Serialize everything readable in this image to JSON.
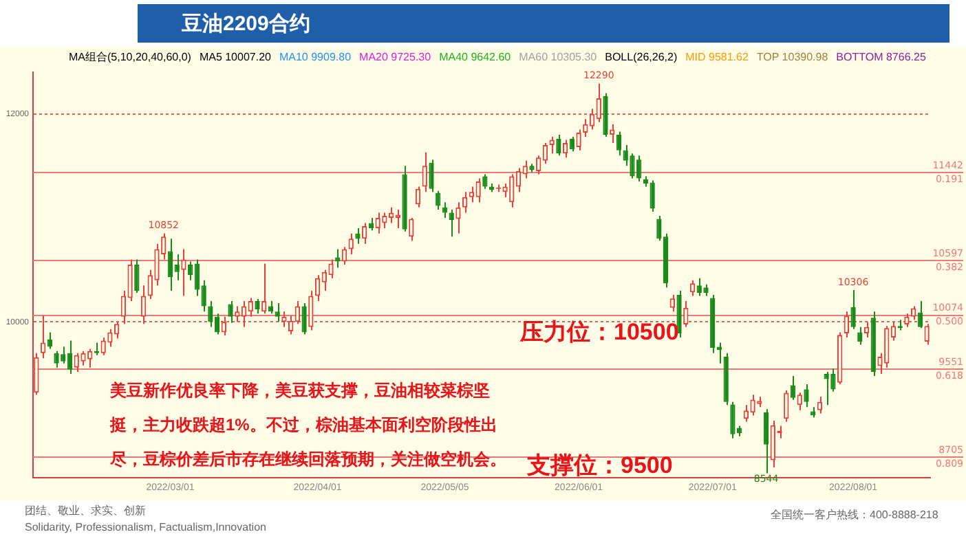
{
  "chart_data": {
    "type": "candlestick",
    "title": "豆油2209合约",
    "categories": [
      null,
      null,
      null,
      null,
      null,
      null,
      null,
      null,
      null,
      null,
      null,
      null,
      null,
      null,
      null,
      null,
      null,
      null,
      null,
      null,
      "2022/03/01",
      null,
      null,
      null,
      null,
      null,
      null,
      null,
      null,
      null,
      null,
      null,
      null,
      null,
      null,
      null,
      null,
      null,
      null,
      null,
      null,
      null,
      "2022/04/01",
      null,
      null,
      null,
      null,
      null,
      null,
      null,
      null,
      null,
      null,
      null,
      null,
      null,
      null,
      null,
      null,
      null,
      null,
      "2022/05/05",
      null,
      null,
      null,
      null,
      null,
      null,
      null,
      null,
      null,
      null,
      null,
      null,
      null,
      null,
      null,
      null,
      null,
      null,
      null,
      "2022/06/01",
      null,
      null,
      null,
      null,
      null,
      null,
      null,
      null,
      null,
      null,
      null,
      null,
      null,
      null,
      null,
      null,
      null,
      null,
      null,
      "2022/07/01",
      null,
      null,
      null,
      null,
      null,
      null,
      null,
      null,
      null,
      null,
      null,
      null,
      null,
      null,
      null,
      null,
      null,
      null,
      null,
      null,
      "2022/08/01",
      null,
      null,
      null,
      null,
      null,
      null,
      null,
      null,
      null,
      null,
      null
    ],
    "ohlc": [
      [
        9320,
        9700,
        9300,
        9660
      ],
      [
        9700,
        10060,
        9650,
        9800
      ],
      [
        9830,
        9900,
        9740,
        9760
      ],
      [
        9700,
        9720,
        9560,
        9600
      ],
      [
        9690,
        9760,
        9600,
        9620
      ],
      [
        9700,
        9820,
        9500,
        9540
      ],
      [
        9560,
        9700,
        9520,
        9680
      ],
      [
        9620,
        9720,
        9580,
        9700
      ],
      [
        9640,
        9740,
        9560,
        9720
      ],
      [
        9720,
        9800,
        9680,
        9700
      ],
      [
        9700,
        9850,
        9680,
        9820
      ],
      [
        9800,
        9930,
        9760,
        9900
      ],
      [
        9880,
        10000,
        9840,
        9980
      ],
      [
        10050,
        10300,
        9980,
        10250
      ],
      [
        10230,
        10600,
        10200,
        10550
      ],
      [
        10550,
        10600,
        10280,
        10300
      ],
      [
        10050,
        10350,
        9980,
        10250
      ],
      [
        10250,
        10500,
        10220,
        10450
      ],
      [
        10400,
        10750,
        10350,
        10700
      ],
      [
        10650,
        10852,
        10600,
        10820
      ],
      [
        10680,
        10800,
        10300,
        10430
      ],
      [
        10550,
        10650,
        10400,
        10480
      ],
      [
        10500,
        10700,
        10250,
        10600
      ],
      [
        10550,
        10580,
        10400,
        10450
      ],
      [
        10560,
        10600,
        10250,
        10310
      ],
      [
        10350,
        10400,
        10100,
        10150
      ],
      [
        10150,
        10200,
        9950,
        10000
      ],
      [
        10050,
        10080,
        9880,
        9900
      ],
      [
        9900,
        10050,
        9870,
        10000
      ],
      [
        10170,
        10200,
        9990,
        10050
      ],
      [
        10050,
        10150,
        10000,
        10100
      ],
      [
        10050,
        10200,
        9950,
        10150
      ],
      [
        10100,
        10230,
        10050,
        10200
      ],
      [
        10200,
        10220,
        10080,
        10120
      ],
      [
        10100,
        10560,
        10080,
        10200
      ],
      [
        10150,
        10200,
        10080,
        10100
      ],
      [
        10100,
        10180,
        10000,
        10050
      ],
      [
        10000,
        10100,
        9950,
        10050
      ],
      [
        9910,
        10060,
        9880,
        10010
      ],
      [
        10000,
        10200,
        9980,
        10150
      ],
      [
        10150,
        10180,
        9880,
        9900
      ],
      [
        9950,
        10300,
        9920,
        10250
      ],
      [
        10250,
        10450,
        10200,
        10420
      ],
      [
        10380,
        10500,
        10300,
        10480
      ],
      [
        10450,
        10600,
        10420,
        10560
      ],
      [
        10620,
        10700,
        10520,
        10580
      ],
      [
        10580,
        10720,
        10550,
        10700
      ],
      [
        10700,
        10850,
        10650,
        10800
      ],
      [
        10850,
        10900,
        10750,
        10800
      ],
      [
        10800,
        10950,
        10750,
        10920
      ],
      [
        10950,
        11000,
        10880,
        10900
      ],
      [
        10900,
        11050,
        10850,
        11000
      ],
      [
        10950,
        11050,
        10900,
        11020
      ],
      [
        11000,
        11100,
        10950,
        11050
      ],
      [
        11000,
        11080,
        10900,
        11030
      ],
      [
        11420,
        11500,
        10870,
        10890
      ],
      [
        10820,
        11000,
        10780,
        10990
      ],
      [
        11130,
        11300,
        11100,
        11280
      ],
      [
        11300,
        11630,
        11250,
        11500
      ],
      [
        11530,
        11560,
        11250,
        11280
      ],
      [
        11240,
        11260,
        11080,
        11115
      ],
      [
        11100,
        11150,
        11000,
        11050
      ],
      [
        11050,
        11080,
        10820,
        10980
      ],
      [
        10990,
        11150,
        10850,
        11100
      ],
      [
        11100,
        11250,
        11050,
        11200
      ],
      [
        11200,
        11300,
        11150,
        11250
      ],
      [
        11200,
        11380,
        11150,
        11350
      ],
      [
        11400,
        11420,
        11280,
        11300
      ],
      [
        11300,
        11330,
        11250,
        11270
      ],
      [
        11280,
        11320,
        11250,
        11290
      ],
      [
        11250,
        11330,
        11200,
        11300
      ],
      [
        11150,
        11420,
        11100,
        11400
      ],
      [
        11300,
        11480,
        11250,
        11450
      ],
      [
        11420,
        11550,
        11380,
        11500
      ],
      [
        11500,
        11520,
        11440,
        11460
      ],
      [
        11450,
        11600,
        11420,
        11580
      ],
      [
        11550,
        11720,
        11520,
        11700
      ],
      [
        11700,
        11780,
        11620,
        11750
      ],
      [
        11760,
        11800,
        11600,
        11620
      ],
      [
        11620,
        11750,
        11580,
        11720
      ],
      [
        11760,
        11780,
        11640,
        11660
      ],
      [
        11680,
        11850,
        11650,
        11820
      ],
      [
        11820,
        11950,
        11780,
        11900
      ],
      [
        11880,
        12050,
        11850,
        12000
      ],
      [
        11950,
        12290,
        11920,
        12150
      ],
      [
        12170,
        12200,
        11780,
        11800
      ],
      [
        11800,
        11900,
        11720,
        11850
      ],
      [
        11800,
        11830,
        11600,
        11650
      ],
      [
        11650,
        11700,
        11500,
        11550
      ],
      [
        11600,
        11620,
        11380,
        11400
      ],
      [
        11560,
        11600,
        11350,
        11380
      ],
      [
        11370,
        11400,
        11300,
        11330
      ],
      [
        11340,
        11360,
        11060,
        11090
      ],
      [
        10990,
        11020,
        10780,
        10800
      ],
      [
        10820,
        10850,
        10330,
        10370
      ],
      [
        10135,
        10260,
        10100,
        10225
      ],
      [
        10260,
        10300,
        9850,
        9890
      ],
      [
        9975,
        10200,
        9950,
        10135
      ],
      [
        10285,
        10400,
        10250,
        10370
      ],
      [
        10350,
        10420,
        10250,
        10280
      ],
      [
        10330,
        10360,
        10250,
        10280
      ],
      [
        10230,
        10260,
        9700,
        9750
      ],
      [
        9760,
        9800,
        9600,
        9730
      ],
      [
        9665,
        9700,
        9200,
        9230
      ],
      [
        9205,
        9230,
        8880,
        8920
      ],
      [
        8980,
        9000,
        8900,
        8930
      ],
      [
        9068,
        9200,
        9040,
        9147
      ],
      [
        9127,
        9300,
        9100,
        9251
      ],
      [
        9210,
        9280,
        9180,
        9240
      ],
      [
        9130,
        9160,
        8544,
        8820
      ],
      [
        8670,
        9050,
        8600,
        9005
      ],
      [
        8930,
        9000,
        8880,
        8950
      ],
      [
        9068,
        9340,
        9040,
        9317
      ],
      [
        9390,
        9480,
        9250,
        9270
      ],
      [
        9200,
        9320,
        9150,
        9300
      ],
      [
        9350,
        9400,
        9180,
        9230
      ],
      [
        9140,
        9180,
        9080,
        9100
      ],
      [
        9150,
        9280,
        9120,
        9230
      ],
      [
        9500,
        9520,
        9200,
        9450
      ],
      [
        9500,
        9550,
        9330,
        9350
      ],
      [
        9415,
        9900,
        9400,
        9875
      ],
      [
        9890,
        10100,
        9850,
        10060
      ],
      [
        10140,
        10306,
        9930,
        9950
      ],
      [
        9900,
        9950,
        9780,
        9810
      ],
      [
        9890,
        10000,
        9850,
        9950
      ],
      [
        10040,
        10100,
        9480,
        9520
      ],
      [
        9575,
        9700,
        9500,
        9665
      ],
      [
        9600,
        9960,
        9560,
        9940
      ],
      [
        9850,
        10000,
        9820,
        9960
      ],
      [
        9960,
        10020,
        9920,
        9940
      ],
      [
        9975,
        10080,
        9950,
        10050
      ],
      [
        10050,
        10150,
        10020,
        10130
      ],
      [
        10090,
        10200,
        9940,
        9950
      ],
      [
        9810,
        9980,
        9780,
        9960
      ]
    ],
    "ylim": [
      8500,
      12400
    ],
    "yticks": [
      10000,
      12000
    ],
    "grid": "y",
    "ref_lines": [
      {
        "axis": "y",
        "value": 11442,
        "label": "11442 0.191",
        "color": "#f07878"
      },
      {
        "axis": "y",
        "value": 10597,
        "label": "10597 0.382",
        "color": "#f07878"
      },
      {
        "axis": "y",
        "value": 10074,
        "label": "10074 0.500",
        "color": "#f07878"
      },
      {
        "axis": "y",
        "value": 9551,
        "label": "9551 0.618",
        "color": "#f07878"
      },
      {
        "axis": "y",
        "value": 8705,
        "label": "8705 0.809",
        "color": "#f07878"
      }
    ],
    "annotations": [
      "MA组合(5,10,20,40,60,0)",
      "MA5 10007.20",
      "MA10 9909.80",
      "MA20 9725.30",
      "MA40 9642.60",
      "MA60 10305.30",
      "BOLL(26,26,2)",
      "MID 9581.62",
      "TOP 10390.98",
      "BOTTOM 8766.25",
      "美豆新作优良率下降，美豆获支撑，豆油相较菜棕坚挺，主力收跌超1%。不过，棕油基本面利空阶段性出尽，豆棕价差后市存在继续回落预期，关注做空机会。",
      "压力位：10500",
      "支撑位：9500",
      "团结、敬业、求实、创新",
      "Solidarity, Professionalism, Factualism,Innovation",
      "全国统一客户热线：400-8888-218",
      {
        "text": "12290",
        "y": 12290
      },
      {
        "text": "10852",
        "y": 10852
      },
      {
        "text": "10306",
        "y": 10306
      },
      {
        "text": "8544",
        "y": 8544
      }
    ]
  }
}
